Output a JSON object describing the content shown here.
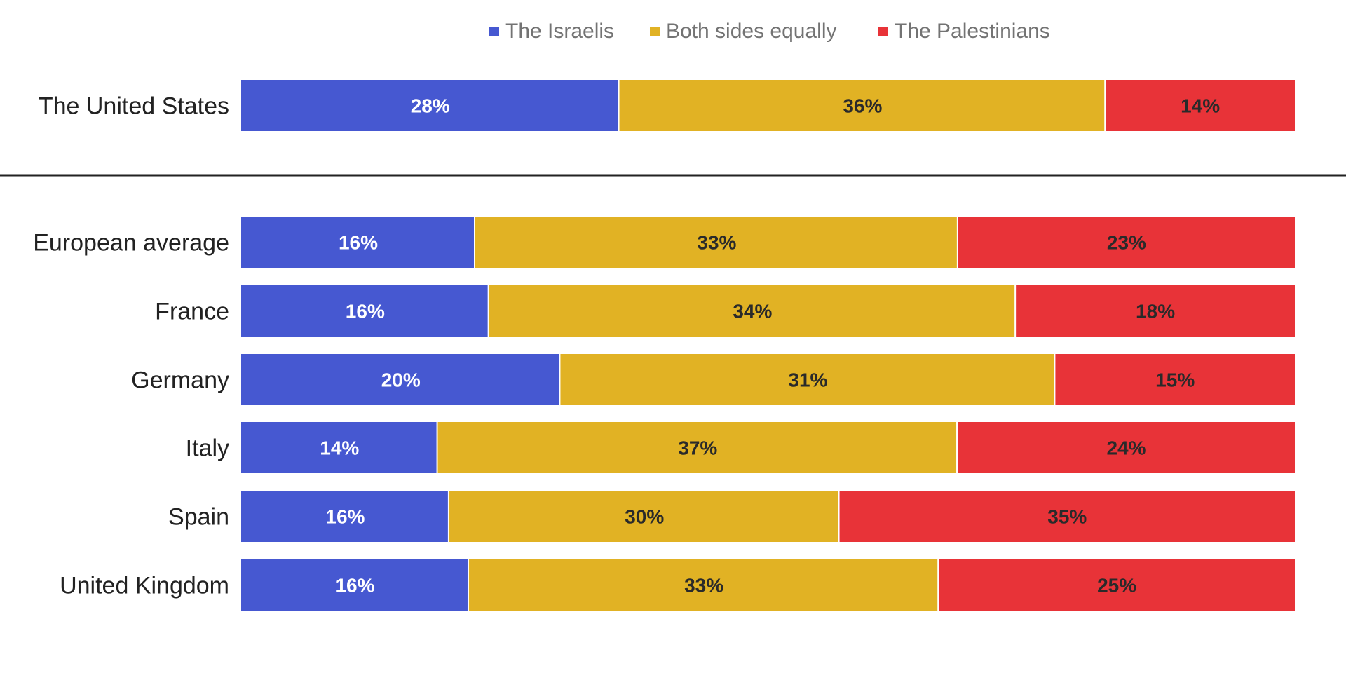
{
  "chart_data": {
    "type": "bar",
    "orientation": "horizontal",
    "stacked": true,
    "normalized": true,
    "title": "",
    "xlabel": "",
    "ylabel": "",
    "legend_position": "top",
    "grid": false,
    "separator_after_first_row": true,
    "categories": [
      "The United States",
      "European average",
      "France",
      "Germany",
      "Italy",
      "Spain",
      "United Kingdom"
    ],
    "series": [
      {
        "name": "The Israelis",
        "color": "#4658D1",
        "label_color": "#ffffff",
        "values": [
          28,
          16,
          16,
          20,
          14,
          16,
          16
        ]
      },
      {
        "name": "Both sides equally",
        "color": "#E1B224",
        "label_color": "#2a2a2a",
        "values": [
          36,
          33,
          34,
          31,
          37,
          30,
          33
        ]
      },
      {
        "name": "The Palestinians",
        "color": "#E83338",
        "label_color": "#2a2a2a",
        "values": [
          14,
          23,
          18,
          15,
          24,
          35,
          25
        ]
      }
    ],
    "value_suffix": "%"
  }
}
